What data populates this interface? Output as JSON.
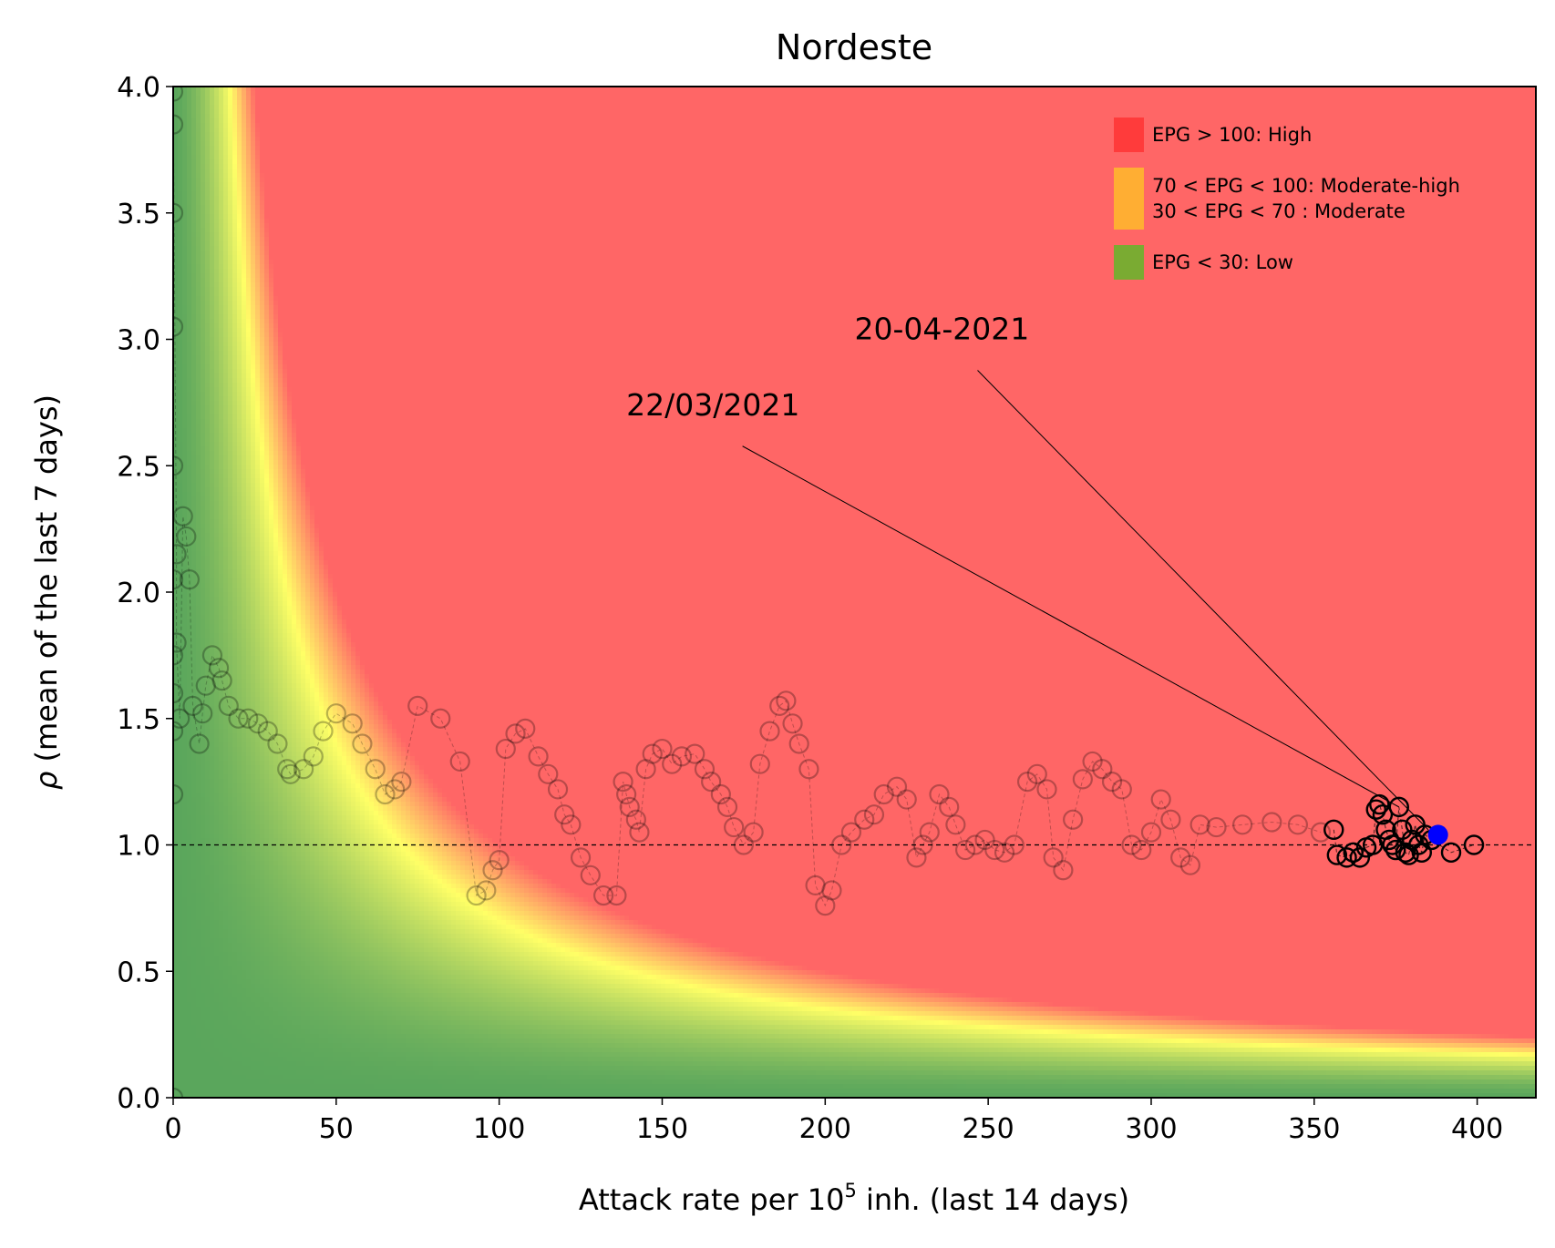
{
  "chart_data": {
    "type": "scatter",
    "title": "Nordeste",
    "xlabel_main": "Attack rate per 10",
    "xlabel_sup": "5",
    "xlabel_rest": " inh. (last 14 days)",
    "ylabel_rho": "ρ",
    "ylabel_rest": " (mean of the last 7 days)",
    "xlim": [
      0,
      418
    ],
    "ylim": [
      0,
      4.0
    ],
    "xticks": [
      0,
      50,
      100,
      150,
      200,
      250,
      300,
      350,
      400
    ],
    "xtick_labels": [
      "0",
      "50",
      "100",
      "150",
      "200",
      "250",
      "300",
      "350",
      "400"
    ],
    "yticks": [
      0.0,
      0.5,
      1.0,
      1.5,
      2.0,
      2.5,
      3.0,
      3.5,
      4.0
    ],
    "ytick_labels": [
      "0.0",
      "0.5",
      "1.0",
      "1.5",
      "2.0",
      "2.5",
      "3.0",
      "3.5",
      "4.0"
    ],
    "reference_line_y": 1.0,
    "background": {
      "quantity": "EPG = attack rate × ρ",
      "colors": {
        "low": "#5aa65c",
        "mid": "#ffff66",
        "high": "#ff6666"
      }
    },
    "legend": {
      "position": "top-right",
      "entries": [
        {
          "label": "EPG > 100: High",
          "color": "#ff3b3b"
        },
        {
          "label": "70 < EPG < 100: Moderate-high",
          "label2": "30 < EPG < 70 : Moderate",
          "color": "#ffae33"
        },
        {
          "label": "EPG < 30: Low",
          "color": "#7aab32"
        }
      ]
    },
    "annotations": [
      {
        "text": "22/03/2021",
        "text_xy": [
          139,
          2.7
        ],
        "point_xy": [
          376,
          1.15
        ]
      },
      {
        "text": "20-04-2021",
        "text_xy": [
          209,
          3.0
        ],
        "point_xy": [
          385,
          1.06
        ]
      }
    ],
    "history_series": {
      "name": "",
      "x": [
        0,
        0,
        0,
        0,
        0,
        0,
        0,
        0,
        0,
        0,
        0,
        1,
        1,
        2,
        3,
        4,
        5,
        6,
        8,
        9,
        10,
        12,
        14,
        15,
        17,
        20,
        23,
        26,
        29,
        32,
        35,
        36,
        40,
        43,
        46,
        50,
        55,
        58,
        62,
        65,
        68,
        70,
        75,
        82,
        88,
        93,
        96,
        98,
        100,
        102,
        105,
        108,
        112,
        115,
        118,
        120,
        122,
        125,
        128,
        132,
        136,
        138,
        139,
        140,
        142,
        143,
        145,
        147,
        150,
        153,
        156,
        160,
        163,
        165,
        168,
        170,
        172,
        175,
        178,
        180,
        183,
        186,
        188,
        190,
        192,
        195,
        197,
        200,
        202,
        205,
        208,
        212,
        215,
        218,
        222,
        225,
        228,
        230,
        232,
        235,
        238,
        240,
        243,
        246,
        249,
        252,
        255,
        258,
        262,
        265,
        268,
        270,
        273,
        276,
        279,
        282,
        285,
        288,
        291,
        294,
        297,
        300,
        303,
        306,
        309,
        312,
        315,
        320,
        328,
        337,
        345,
        352
      ],
      "y": [
        0,
        1.2,
        1.45,
        1.6,
        1.75,
        2.05,
        2.5,
        3.05,
        3.5,
        3.85,
        3.98,
        2.15,
        1.8,
        1.5,
        2.3,
        2.22,
        2.05,
        1.55,
        1.4,
        1.52,
        1.63,
        1.75,
        1.7,
        1.65,
        1.55,
        1.5,
        1.5,
        1.48,
        1.45,
        1.4,
        1.3,
        1.28,
        1.3,
        1.35,
        1.45,
        1.52,
        1.48,
        1.4,
        1.3,
        1.2,
        1.22,
        1.25,
        1.55,
        1.5,
        1.33,
        0.8,
        0.82,
        0.9,
        0.94,
        1.38,
        1.44,
        1.46,
        1.35,
        1.28,
        1.22,
        1.12,
        1.08,
        0.95,
        0.88,
        0.8,
        0.8,
        1.25,
        1.2,
        1.15,
        1.1,
        1.05,
        1.3,
        1.36,
        1.38,
        1.32,
        1.35,
        1.36,
        1.3,
        1.25,
        1.2,
        1.15,
        1.07,
        1.0,
        1.05,
        1.32,
        1.45,
        1.55,
        1.57,
        1.48,
        1.4,
        1.3,
        0.84,
        0.76,
        0.82,
        1.0,
        1.05,
        1.1,
        1.12,
        1.2,
        1.23,
        1.18,
        0.95,
        1.0,
        1.05,
        1.2,
        1.15,
        1.08,
        0.98,
        1.0,
        1.02,
        0.98,
        0.97,
        1.0,
        1.25,
        1.28,
        1.22,
        0.95,
        0.9,
        1.1,
        1.26,
        1.33,
        1.3,
        1.25,
        1.22,
        1.0,
        0.98,
        1.05,
        1.18,
        1.1,
        0.95,
        0.92,
        1.08,
        1.07,
        1.08,
        1.09,
        1.08,
        1.05
      ]
    },
    "recent_series": {
      "name": "",
      "x": [
        356,
        357,
        360,
        362,
        364,
        366,
        368,
        369,
        370,
        371,
        372,
        373,
        374,
        375,
        376,
        377,
        378,
        379,
        380,
        381,
        382,
        383,
        384,
        386,
        392,
        399
      ],
      "y": [
        1.06,
        0.96,
        0.95,
        0.97,
        0.95,
        0.99,
        1.0,
        1.14,
        1.16,
        1.12,
        1.06,
        1.02,
        1.0,
        0.98,
        1.15,
        1.06,
        0.97,
        0.96,
        1.02,
        1.08,
        1.0,
        0.97,
        1.04,
        1.02,
        0.97,
        1.0
      ]
    },
    "current_point": {
      "x": 388,
      "y": 1.04,
      "color": "#0000ff"
    }
  }
}
